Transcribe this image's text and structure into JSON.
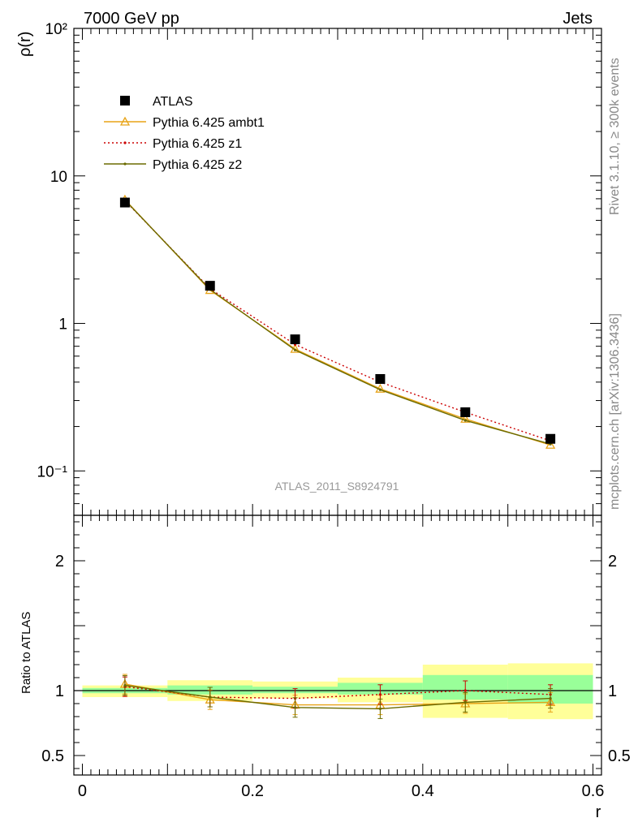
{
  "header": {
    "left_label": "7000 GeV pp",
    "right_label": "Jets",
    "side_label_top": "Rivet 3.1.10, ≥ 300k events",
    "side_label_bottom": "mcplots.cern.ch [arXiv:1306.3436]",
    "analysis_id": "ATLAS_2011_S8924791"
  },
  "colors": {
    "data": "#000000",
    "ambt1": "#e8a317",
    "z1": "#cc0000",
    "z2": "#6b6b00",
    "band_inner": "#99ff99",
    "band_outer": "#ffff99"
  },
  "chart_data": [
    {
      "type": "line",
      "panel": "main",
      "ylabel": "ρ(r)",
      "yscale": "log",
      "ylim": [
        0.05,
        100
      ],
      "xlim": [
        -0.01,
        0.61
      ],
      "y_tick_labels": [
        "10⁻¹",
        "1",
        "10",
        "10²"
      ],
      "legend_position": "top-left",
      "x": [
        0.05,
        0.15,
        0.25,
        0.35,
        0.45,
        0.55
      ],
      "series": [
        {
          "name": "ATLAS",
          "style": "markers",
          "values": [
            6.6,
            1.8,
            0.78,
            0.42,
            0.25,
            0.165
          ]
        },
        {
          "name": "Pythia 6.425 ambt1",
          "style": "line-triangle",
          "values": [
            6.9,
            1.68,
            0.67,
            0.36,
            0.225,
            0.15
          ]
        },
        {
          "name": "Pythia 6.425 z1",
          "style": "dotted",
          "values": [
            6.8,
            1.72,
            0.72,
            0.4,
            0.25,
            0.16
          ]
        },
        {
          "name": "Pythia 6.425 z2",
          "style": "line",
          "values": [
            6.85,
            1.7,
            0.66,
            0.355,
            0.22,
            0.152
          ]
        }
      ]
    },
    {
      "type": "line",
      "panel": "ratio",
      "ylabel": "Ratio to ATLAS",
      "ylim": [
        0.35,
        2.35
      ],
      "xlim": [
        -0.01,
        0.61
      ],
      "xlabel": "r",
      "x_tick_labels": [
        "0",
        "0.2",
        "0.4",
        "0.6"
      ],
      "y_tick_labels": [
        "0.5",
        "1",
        "2"
      ],
      "x": [
        0.05,
        0.15,
        0.25,
        0.35,
        0.45,
        0.55
      ],
      "bands": {
        "bin_edges": [
          0.0,
          0.1,
          0.2,
          0.3,
          0.4,
          0.5,
          0.6
        ],
        "inner": [
          [
            0.98,
            1.02
          ],
          [
            0.97,
            1.04
          ],
          [
            0.98,
            1.03
          ],
          [
            0.97,
            1.06
          ],
          [
            0.93,
            1.12
          ],
          [
            0.9,
            1.12
          ]
        ],
        "outer": [
          [
            0.95,
            1.04
          ],
          [
            0.92,
            1.08
          ],
          [
            0.94,
            1.07
          ],
          [
            0.91,
            1.1
          ],
          [
            0.79,
            1.2
          ],
          [
            0.78,
            1.21
          ]
        ]
      },
      "series": [
        {
          "name": "Pythia 6.425 ambt1",
          "values": [
            1.05,
            0.93,
            0.89,
            0.89,
            0.9,
            0.91
          ]
        },
        {
          "name": "Pythia 6.425 z1",
          "values": [
            1.03,
            0.95,
            0.94,
            0.97,
            1.0,
            0.97
          ]
        },
        {
          "name": "Pythia 6.425 z2",
          "values": [
            1.04,
            0.95,
            0.87,
            0.86,
            0.91,
            0.94
          ]
        }
      ]
    }
  ]
}
